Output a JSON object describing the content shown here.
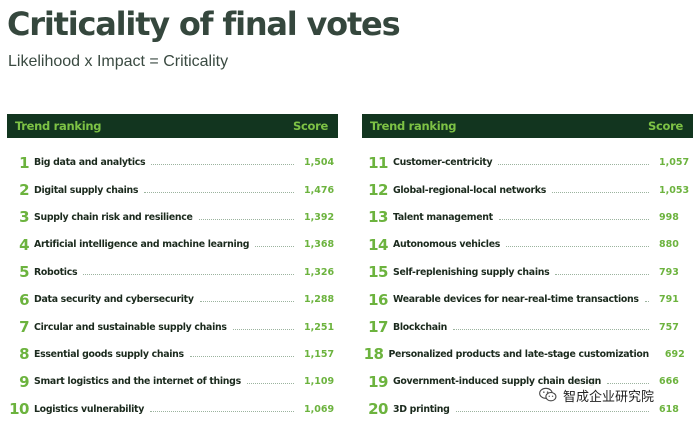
{
  "header": {
    "title": "Criticality of final votes",
    "subtitle": "Likelihood x Impact = Criticality"
  },
  "left_table": {
    "col_trend": "Trend ranking",
    "col_score": "Score",
    "rows": [
      {
        "rank": "1",
        "name": "Big data and analytics",
        "score": "1,504"
      },
      {
        "rank": "2",
        "name": "Digital supply chains",
        "score": "1,476"
      },
      {
        "rank": "3",
        "name": "Supply chain risk and resilience",
        "score": "1,392"
      },
      {
        "rank": "4",
        "name": "Artificial intelligence and machine learning",
        "score": "1,368"
      },
      {
        "rank": "5",
        "name": "Robotics",
        "score": "1,326"
      },
      {
        "rank": "6",
        "name": "Data security and cybersecurity",
        "score": "1,288"
      },
      {
        "rank": "7",
        "name": "Circular and sustainable supply chains",
        "score": "1,251"
      },
      {
        "rank": "8",
        "name": "Essential goods supply chains",
        "score": "1,157"
      },
      {
        "rank": "9",
        "name": "Smart logistics and the internet of things",
        "score": "1,109"
      },
      {
        "rank": "10",
        "name": "Logistics vulnerability",
        "score": "1,069"
      }
    ]
  },
  "right_table": {
    "col_trend": "Trend ranking",
    "col_score": "Score",
    "rows": [
      {
        "rank": "11",
        "name": "Customer-centricity",
        "score": "1,057"
      },
      {
        "rank": "12",
        "name": "Global-regional-local networks",
        "score": "1,053"
      },
      {
        "rank": "13",
        "name": "Talent management",
        "score": "998"
      },
      {
        "rank": "14",
        "name": "Autonomous vehicles",
        "score": "880"
      },
      {
        "rank": "15",
        "name": "Self-replenishing supply chains",
        "score": "793"
      },
      {
        "rank": "16",
        "name": "Wearable devices for near-real-time transactions",
        "score": "791"
      },
      {
        "rank": "17",
        "name": "Blockchain",
        "score": "757"
      },
      {
        "rank": "18",
        "name": "Personalized products and late-stage customization",
        "score": "692"
      },
      {
        "rank": "19",
        "name": "Government-induced supply chain design",
        "score": "666"
      },
      {
        "rank": "20",
        "name": "3D printing",
        "score": "618"
      }
    ]
  },
  "watermark": {
    "text": "智成企业研究院",
    "icon": "wechat-icon"
  },
  "colors": {
    "header_bg": "#12351f",
    "accent_green": "#6cb33e",
    "title_color": "#35473d"
  }
}
